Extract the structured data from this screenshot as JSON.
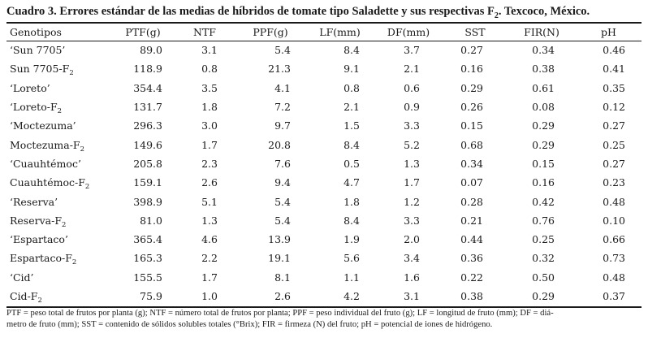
{
  "caption": {
    "prefix": "Cuadro 3. Errores estándar de las medias de híbridos de tomate tipo Saladette y sus respectivas F",
    "sub": "2",
    "suffix": ". Texcoco, México."
  },
  "columns": [
    "Genotipos",
    "PTF(g)",
    "NTF",
    "PPF(g)",
    "LF(mm)",
    "DF(mm)",
    "SST",
    "FIR(N)",
    "pH"
  ],
  "rows": [
    {
      "name": "‘Sun 7705’",
      "sub": "",
      "values": [
        "89.0",
        "3.1",
        "5.4",
        "8.4",
        "3.7",
        "0.27",
        "0.34",
        "0.46"
      ]
    },
    {
      "name": "Sun 7705-F",
      "sub": "2",
      "values": [
        "118.9",
        "0.8",
        "21.3",
        "9.1",
        "2.1",
        "0.16",
        "0.38",
        "0.41"
      ]
    },
    {
      "name": "‘Loreto’",
      "sub": "",
      "values": [
        "354.4",
        "3.5",
        "4.1",
        "0.8",
        "0.6",
        "0.29",
        "0.61",
        "0.35"
      ]
    },
    {
      "name": "‘Loreto-F",
      "sub": "2",
      "values": [
        "131.7",
        "1.8",
        "7.2",
        "2.1",
        "0.9",
        "0.26",
        "0.08",
        "0.12"
      ]
    },
    {
      "name": "‘Moctezuma’",
      "sub": "",
      "values": [
        "296.3",
        "3.0",
        "9.7",
        "1.5",
        "3.3",
        "0.15",
        "0.29",
        "0.27"
      ]
    },
    {
      "name": "Moctezuma-F",
      "sub": "2",
      "values": [
        "149.6",
        "1.7",
        "20.8",
        "8.4",
        "5.2",
        "0.68",
        "0.29",
        "0.25"
      ]
    },
    {
      "name": "‘Cuauhtémoc’",
      "sub": "",
      "values": [
        "205.8",
        "2.3",
        "7.6",
        "0.5",
        "1.3",
        "0.34",
        "0.15",
        "0.27"
      ]
    },
    {
      "name": "Cuauhtémoc-F",
      "sub": "2",
      "values": [
        "159.1",
        "2.6",
        "9.4",
        "4.7",
        "1.7",
        "0.07",
        "0.16",
        "0.23"
      ]
    },
    {
      "name": "‘Reserva’",
      "sub": "",
      "values": [
        "398.9",
        "5.1",
        "5.4",
        "1.8",
        "1.2",
        "0.28",
        "0.42",
        "0.48"
      ]
    },
    {
      "name": "Reserva-F",
      "sub": "2",
      "values": [
        "81.0",
        "1.3",
        "5.4",
        "8.4",
        "3.3",
        "0.21",
        "0.76",
        "0.10"
      ]
    },
    {
      "name": "‘Espartaco’",
      "sub": "",
      "values": [
        "365.4",
        "4.6",
        "13.9",
        "1.9",
        "2.0",
        "0.44",
        "0.25",
        "0.66"
      ]
    },
    {
      "name": "Espartaco-F",
      "sub": "2",
      "values": [
        "165.3",
        "2.2",
        "19.1",
        "5.6",
        "3.4",
        "0.36",
        "0.32",
        "0.73"
      ]
    },
    {
      "name": "‘Cid’",
      "sub": "",
      "values": [
        "155.5",
        "1.7",
        "8.1",
        "1.1",
        "1.6",
        "0.22",
        "0.50",
        "0.48"
      ]
    },
    {
      "name": "Cid-F",
      "sub": "2",
      "values": [
        "75.9",
        "1.0",
        "2.6",
        "4.2",
        "3.1",
        "0.38",
        "0.29",
        "0.37"
      ]
    }
  ],
  "footnote": {
    "line1": "PTF = peso total de frutos por planta (g); NTF = número total de frutos por planta; PPF = peso individual del fruto (g); LF = longitud de fruto (mm); DF = diá-",
    "line2": "metro de fruto (mm); SST = contenido de sólidos solubles totales (°Brix); FIR = firmeza (N) del fruto; pH = potencial de iones de hidrógeno."
  }
}
